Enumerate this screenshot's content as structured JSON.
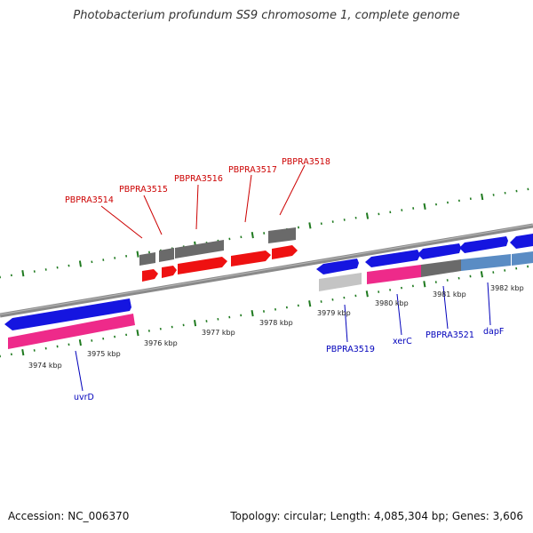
{
  "title": "Photobacterium profundum SS9 chromosome 1, complete genome",
  "footer": {
    "accession": "Accession: NC_006370",
    "topology": "Topology: circular; Length: 4,085,304 bp; Genes: 3,606"
  },
  "colors": {
    "background": "#ffffff",
    "backbone": "#8a8a8a",
    "tick": "#1f7a1f",
    "upper_label": "#cc0000",
    "lower_label": "#0000bb",
    "gene_red": "#ee1111",
    "gene_blue": "#1515e0",
    "gene_pink": "#ee2a8a",
    "gene_gray": "#6a6a6a",
    "gene_lightgray": "#c4c4c4",
    "gene_steel": "#5a8cc4"
  },
  "scale_labels": [
    "3974 kbp",
    "3975 kbp",
    "3976 kbp",
    "3977 kbp",
    "3978 kbp",
    "3979 kbp",
    "3980 kbp",
    "3981 kbp",
    "3982 kbp"
  ],
  "upper_gene_labels": [
    "PBPRA3514",
    "PBPRA3515",
    "PBPRA3516",
    "PBPRA3517",
    "PBPRA3518"
  ],
  "lower_gene_labels": [
    "uvrD",
    "PBPRA3519",
    "xerC",
    "PBPRA3521",
    "dapF"
  ]
}
